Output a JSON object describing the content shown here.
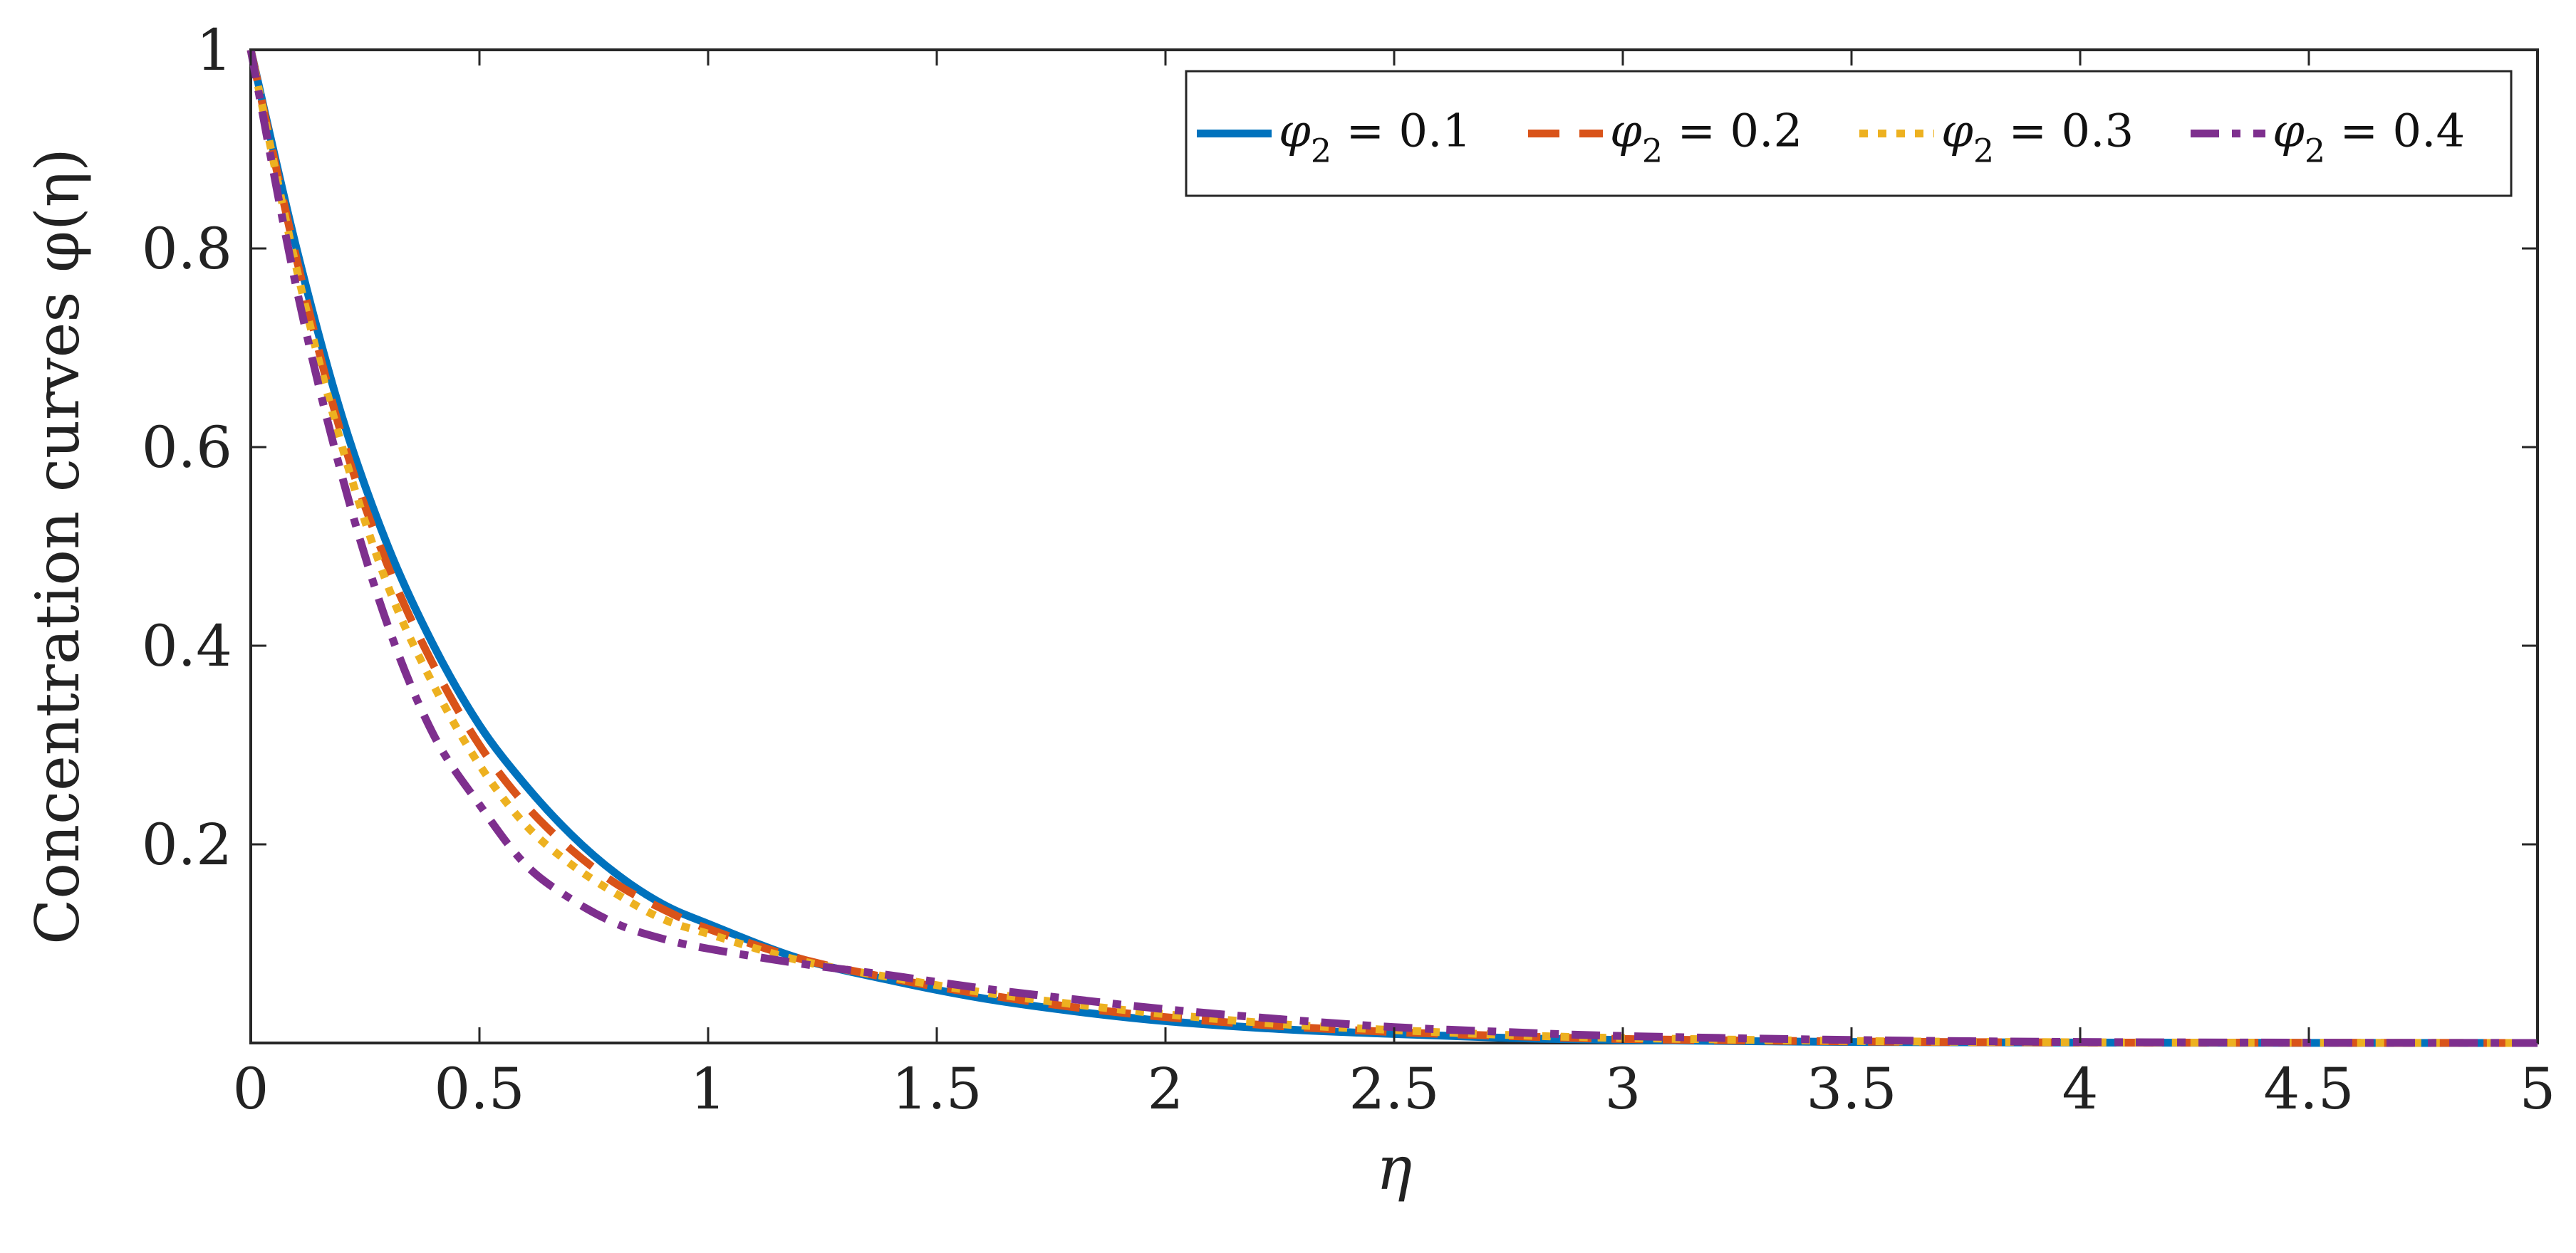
{
  "chart_data": {
    "type": "line",
    "title": "",
    "xlabel": "η",
    "ylabel": "Concentration curves φ(η)",
    "xlim": [
      0,
      5
    ],
    "ylim": [
      0,
      1
    ],
    "xticks": [
      0,
      0.5,
      1,
      1.5,
      2,
      2.5,
      3,
      3.5,
      4,
      4.5,
      5
    ],
    "xtick_labels": [
      "0",
      "0.5",
      "1",
      "1.5",
      "2",
      "2.5",
      "3",
      "3.5",
      "4",
      "4.5",
      "5"
    ],
    "yticks": [
      0.2,
      0.4,
      0.6,
      0.8,
      1
    ],
    "ytick_labels": [
      "0.2",
      "0.4",
      "0.6",
      "0.8",
      "1"
    ],
    "grid": false,
    "legend_position": "top-right",
    "legend_orientation": "horizontal",
    "x": [
      0,
      0.1,
      0.2,
      0.3,
      0.4,
      0.5,
      0.6,
      0.7,
      0.8,
      0.9,
      1.0,
      1.2,
      1.4,
      1.6,
      1.8,
      2.0,
      2.25,
      2.5,
      2.75,
      3.0,
      3.5,
      4.0,
      4.5,
      5.0
    ],
    "series": [
      {
        "name": "φ2 = 0.1",
        "legend_symbol": "φ",
        "legend_sub": "2",
        "legend_value": " = 0.1",
        "color": "#0072BD",
        "dash": "solid",
        "values": [
          1.0,
          0.8,
          0.63,
          0.5,
          0.4,
          0.32,
          0.26,
          0.21,
          0.17,
          0.14,
          0.12,
          0.085,
          0.063,
          0.045,
          0.032,
          0.022,
          0.014,
          0.009,
          0.005,
          0.003,
          0.001,
          0.0004,
          0.0001,
          0.0
        ]
      },
      {
        "name": "φ2 = 0.2",
        "legend_symbol": "φ",
        "legend_sub": "2",
        "legend_value": " = 0.2",
        "color": "#D95319",
        "dash": "dashed",
        "values": [
          1.0,
          0.79,
          0.61,
          0.48,
          0.38,
          0.3,
          0.24,
          0.195,
          0.16,
          0.135,
          0.115,
          0.085,
          0.065,
          0.049,
          0.036,
          0.026,
          0.017,
          0.011,
          0.007,
          0.004,
          0.0015,
          0.0005,
          0.0002,
          0.0
        ]
      },
      {
        "name": "φ2 = 0.3",
        "legend_symbol": "φ",
        "legend_sub": "2",
        "legend_value": " = 0.3",
        "color": "#EDB120",
        "dash": "dotted",
        "values": [
          1.0,
          0.78,
          0.6,
          0.46,
          0.36,
          0.28,
          0.22,
          0.18,
          0.15,
          0.125,
          0.11,
          0.083,
          0.066,
          0.051,
          0.039,
          0.029,
          0.019,
          0.013,
          0.008,
          0.005,
          0.002,
          0.0007,
          0.0002,
          0.0
        ]
      },
      {
        "name": "φ2 = 0.4",
        "legend_symbol": "φ",
        "legend_sub": "2",
        "legend_value": " = 0.4",
        "color": "#7E2F8E",
        "dash": "dashdot",
        "values": [
          1.0,
          0.76,
          0.57,
          0.42,
          0.31,
          0.24,
          0.18,
          0.145,
          0.12,
          0.105,
          0.095,
          0.08,
          0.068,
          0.055,
          0.044,
          0.034,
          0.024,
          0.016,
          0.011,
          0.007,
          0.003,
          0.001,
          0.0003,
          0.0
        ]
      }
    ]
  }
}
